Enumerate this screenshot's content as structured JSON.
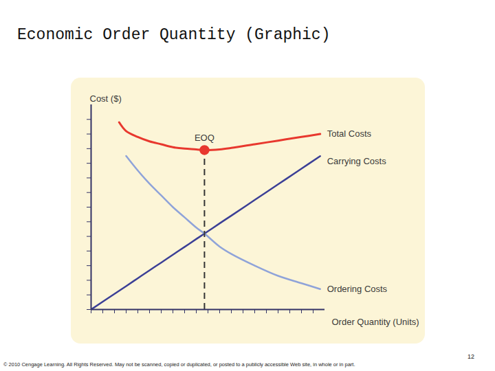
{
  "chart_data": {
    "type": "line",
    "title": "Economic Order Quantity (Graphic)",
    "xlabel": "Order Quantity (Units)",
    "ylabel": "Cost ($)",
    "x": [
      0,
      2.4,
      3,
      4,
      5,
      6,
      7,
      8,
      9,
      9.7,
      11,
      12,
      14,
      16,
      18,
      19.6
    ],
    "series": [
      {
        "name": "Total Costs",
        "color": "#e8382e",
        "values": [
          null,
          12.8,
          12.2,
          11.8,
          11.5,
          11.3,
          11.1,
          11.0,
          10.95,
          10.9,
          10.95,
          11.05,
          11.3,
          11.55,
          11.8,
          12.0
        ]
      },
      {
        "name": "Carrying Costs",
        "color": "#3b3f96",
        "values": [
          0,
          1.28,
          1.6,
          2.14,
          2.68,
          3.21,
          3.75,
          4.28,
          4.82,
          5.19,
          5.89,
          6.42,
          7.49,
          8.56,
          9.63,
          10.49
        ]
      },
      {
        "name": "Ordering Costs",
        "color": "#8fa3d9",
        "values": [
          null,
          null,
          10.5,
          9.5,
          8.6,
          7.8,
          7.0,
          6.3,
          5.6,
          5.19,
          4.3,
          3.8,
          3.0,
          2.3,
          1.8,
          1.4
        ]
      }
    ],
    "annotations": [
      {
        "text": "EOQ",
        "x": 9.7,
        "y": 10.9
      }
    ],
    "xlim": [
      0,
      20
    ],
    "ylim": [
      0,
      14
    ],
    "xticks": [
      0,
      1,
      2,
      3,
      4,
      5,
      6,
      7,
      8,
      9,
      10,
      11,
      12,
      13,
      14,
      15,
      16,
      17,
      18,
      19
    ],
    "yticks": [
      0,
      1,
      2,
      3,
      4,
      5,
      6,
      7,
      8,
      9,
      10,
      11,
      12,
      13
    ],
    "tick_labels": false,
    "grid": false,
    "page_number": "12",
    "footer": "© 2010 Cengage Learning. All Rights Reserved. May not be scanned, copied or duplicated, or posted to a publicly accessible Web site, in whole or in part."
  }
}
